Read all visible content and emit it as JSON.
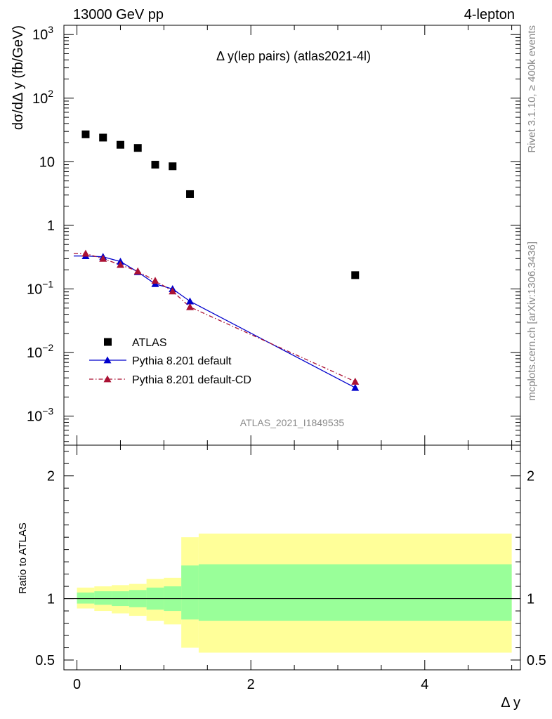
{
  "header": {
    "left": "13000 GeV pp",
    "right": "4-lepton"
  },
  "side_labels": {
    "rivet": "Rivet 3.1.10, ≥ 400k events",
    "mcplots": "mcplots.cern.ch [arXiv:1306.3436]"
  },
  "chart_data": [
    {
      "type": "scatter",
      "title": "Δ y(lep pairs) (atlas2021-4l)",
      "ylabel": "dσ/dΔ y (fb/GeV)",
      "xlabel": "Δ y",
      "analysis_tag": "ATLAS_2021_I1849535",
      "yscale": "log",
      "xlim": [
        -0.15,
        5.1
      ],
      "ylim": [
        0.00035,
        1400
      ],
      "y_ticks": [
        {
          "value": 0.001,
          "base": "10",
          "exp": "−3"
        },
        {
          "value": 0.01,
          "base": "10",
          "exp": "−2"
        },
        {
          "value": 0.1,
          "base": "10",
          "exp": "−1"
        },
        {
          "value": 1,
          "base": "1",
          "exp": ""
        },
        {
          "value": 10,
          "base": "10",
          "exp": ""
        },
        {
          "value": 100,
          "base": "10",
          "exp": "2"
        },
        {
          "value": 1000,
          "base": "10",
          "exp": "3"
        }
      ],
      "legend_position": "lower-left",
      "series": [
        {
          "name": "ATLAS",
          "marker": "square",
          "color": "#000000",
          "x": [
            0.1,
            0.3,
            0.5,
            0.7,
            0.9,
            1.1,
            1.3,
            3.2
          ],
          "y": [
            27,
            24,
            18.5,
            16.5,
            9,
            8.5,
            3.1,
            0.165
          ]
        },
        {
          "name": "Pythia 8.201 default",
          "marker": "triangle",
          "line": "solid",
          "color": "#0000cc",
          "x": [
            0.1,
            0.3,
            0.5,
            0.7,
            0.9,
            1.1,
            1.3,
            3.2
          ],
          "y": [
            0.33,
            0.32,
            0.27,
            0.185,
            0.12,
            0.1,
            0.064,
            0.0028
          ]
        },
        {
          "name": "Pythia 8.201 default-CD",
          "marker": "triangle",
          "line": "dashdot",
          "color": "#aa1133",
          "x": [
            0.1,
            0.3,
            0.5,
            0.7,
            0.9,
            1.1,
            1.3,
            3.2
          ],
          "y": [
            0.36,
            0.3,
            0.24,
            0.19,
            0.135,
            0.092,
            0.052,
            0.0035
          ]
        }
      ]
    },
    {
      "type": "area",
      "ylabel": "Ratio to ATLAS",
      "xlabel": "Δ y",
      "xlim": [
        -0.15,
        5.1
      ],
      "ylim": [
        0.42,
        2.25
      ],
      "x_ticks": [
        0,
        2,
        4
      ],
      "y_ticks": [
        0.5,
        1,
        2
      ],
      "reference_line": 1,
      "bands": {
        "bin_edges": [
          0.0,
          0.2,
          0.4,
          0.6,
          0.8,
          1.0,
          1.2,
          1.4,
          5.0
        ],
        "yellow_low": [
          0.92,
          0.9,
          0.88,
          0.86,
          0.82,
          0.79,
          0.6,
          0.56
        ],
        "yellow_high": [
          1.09,
          1.1,
          1.11,
          1.12,
          1.16,
          1.17,
          1.5,
          1.53
        ],
        "green_low": [
          0.96,
          0.95,
          0.94,
          0.93,
          0.91,
          0.9,
          0.83,
          0.82
        ],
        "green_high": [
          1.05,
          1.06,
          1.06,
          1.07,
          1.09,
          1.1,
          1.27,
          1.28
        ],
        "yellow_color": "#ffff99",
        "green_color": "#99ff99"
      }
    }
  ]
}
